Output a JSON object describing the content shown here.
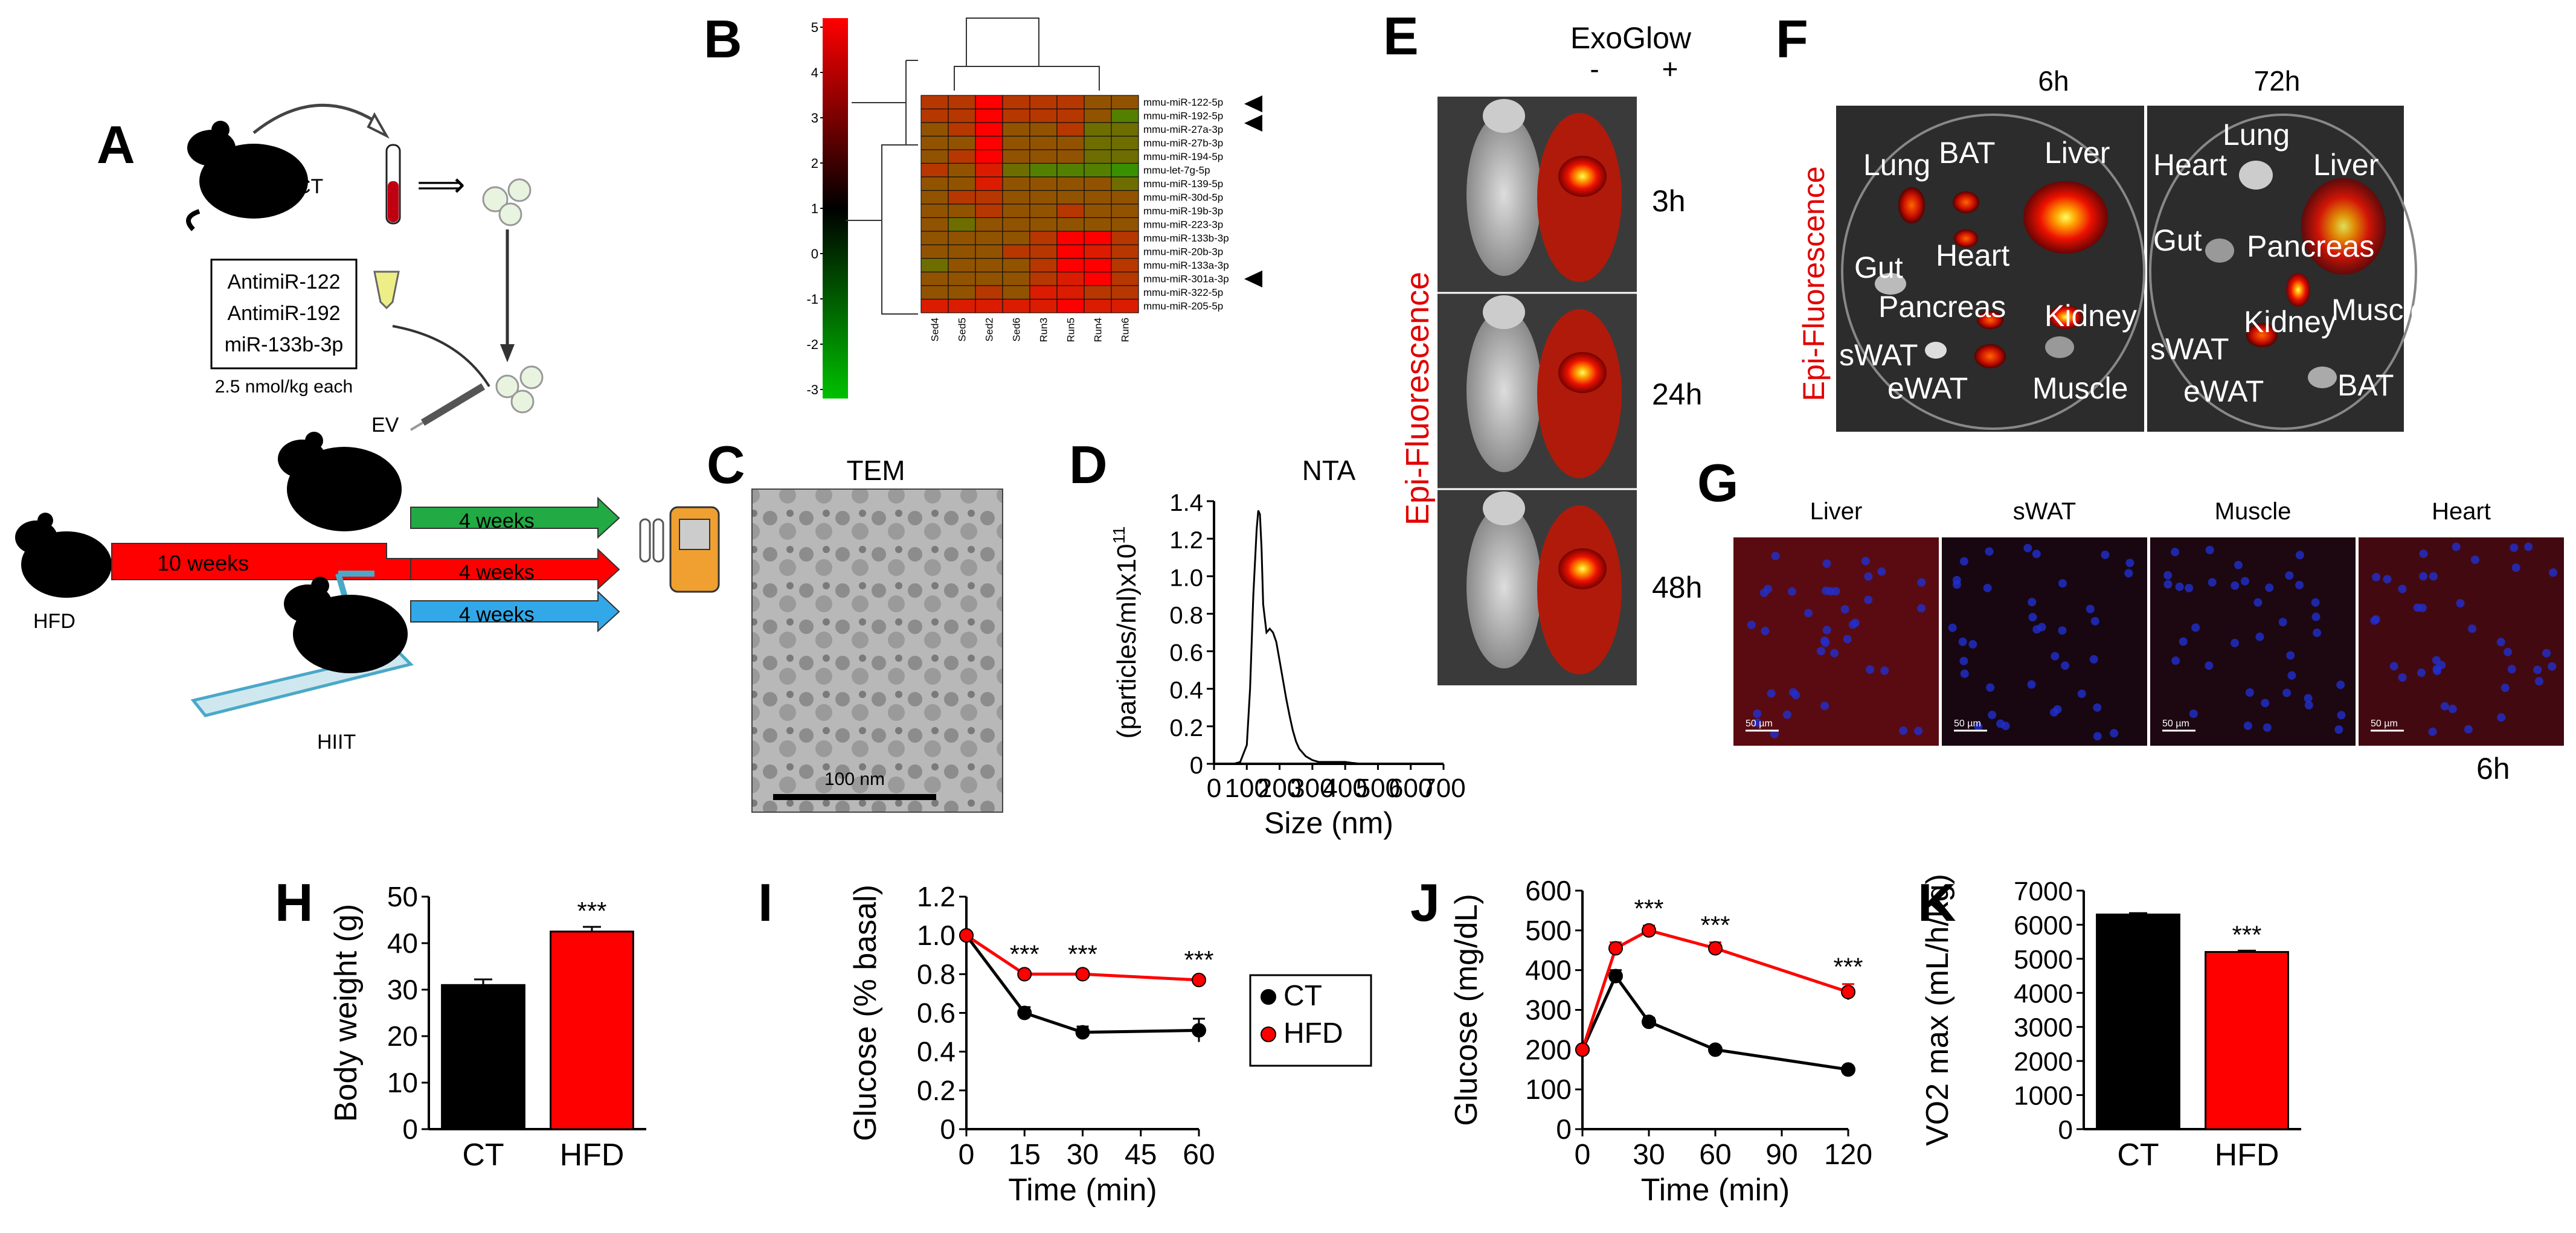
{
  "panels": {
    "A": {
      "letter": "A",
      "ct_label": "CT",
      "treatments": [
        "AntimiR-122",
        "AntimiR-192",
        "miR-133b-3p"
      ],
      "dose": "2.5 nmol/kg each",
      "ev_label": "EV",
      "hfd_label": "HFD",
      "hiit_label": "HIIT",
      "duration_main": "10 weeks",
      "duration_arms": [
        "4 weeks",
        "4 weeks",
        "4 weeks"
      ]
    },
    "B": {
      "letter": "B",
      "scale_ticks": [
        "5",
        "4",
        "3",
        "2",
        "1",
        "0",
        "-1",
        "-2",
        "-3"
      ],
      "rows": [
        "mmu-miR-122-5p",
        "mmu-miR-192-5p",
        "mmu-miR-27a-3p",
        "mmu-miR-27b-3p",
        "mmu-miR-194-5p",
        "mmu-let-7g-5p",
        "mmu-miR-139-5p",
        "mmu-miR-30d-5p",
        "mmu-miR-19b-3p",
        "mmu-miR-223-3p",
        "mmu-miR-133b-3p",
        "mmu-miR-20b-3p",
        "mmu-miR-133a-3p",
        "mmu-miR-301a-3p",
        "mmu-miR-322-5p",
        "mmu-miR-205-5p"
      ],
      "cols": [
        "Sed4",
        "Sed5",
        "Sed2",
        "Sed6",
        "Run3",
        "Run5",
        "Run4",
        "Run6"
      ],
      "matrix": [
        [
          1,
          1,
          2,
          1,
          1,
          1,
          0.5,
          0.5
        ],
        [
          1,
          1,
          2,
          1,
          1,
          1,
          0.5,
          -0.5
        ],
        [
          0.5,
          1,
          2,
          0.5,
          0.5,
          1,
          0,
          0
        ],
        [
          0.5,
          0.5,
          2,
          0.5,
          0.5,
          0.5,
          0,
          0
        ],
        [
          0.5,
          1,
          2,
          0.5,
          0.5,
          0.5,
          0,
          0
        ],
        [
          1,
          0.5,
          1.5,
          0,
          -0.5,
          -0.5,
          -0.5,
          -1
        ],
        [
          0.5,
          0.5,
          1.5,
          0.5,
          0.5,
          0.5,
          0.5,
          0
        ],
        [
          0.5,
          1,
          1,
          0.5,
          0.5,
          0.5,
          0.5,
          0.5
        ],
        [
          0.5,
          0.5,
          1,
          0.5,
          0.5,
          1,
          0.5,
          0.5
        ],
        [
          0.5,
          0,
          0.5,
          0.5,
          0.5,
          0.5,
          0.5,
          0.5
        ],
        [
          0.5,
          0.5,
          0.5,
          0.5,
          1,
          2,
          2,
          1
        ],
        [
          0.5,
          0.5,
          0.5,
          1,
          1,
          2,
          1.5,
          1
        ],
        [
          0,
          0.5,
          0.5,
          0.5,
          1,
          2,
          2,
          1
        ],
        [
          0.5,
          0.5,
          0.5,
          0.5,
          1,
          1.5,
          2,
          1
        ],
        [
          0.5,
          0.5,
          1,
          0.5,
          1.5,
          1.5,
          1,
          1
        ],
        [
          1.5,
          1.5,
          1.5,
          1.5,
          1.5,
          2,
          1.5,
          1.5
        ]
      ]
    },
    "C": {
      "letter": "C",
      "title": "TEM",
      "scalebar": "100 nm"
    },
    "D": {
      "letter": "D",
      "chart_data": {
        "type": "line",
        "title": "NTA",
        "xlabel": "Size (nm)",
        "ylabel": "(particles/ml)x10",
        "ylabel_sup": "11",
        "xlim": [
          0,
          700
        ],
        "ylim": [
          0,
          1.4
        ],
        "xticks": [
          "0",
          "100",
          "200",
          "300",
          "400",
          "500",
          "600",
          "700"
        ],
        "yticks": [
          "0",
          "0.2",
          "0.4",
          "0.6",
          "0.8",
          "1.0",
          "1.2",
          "1.4"
        ],
        "x": [
          0,
          20,
          40,
          60,
          80,
          100,
          110,
          120,
          130,
          135,
          140,
          145,
          150,
          160,
          170,
          180,
          190,
          200,
          210,
          220,
          230,
          240,
          250,
          260,
          270,
          280,
          300,
          320,
          340,
          360,
          380,
          400,
          420,
          450,
          500,
          600,
          700
        ],
        "y": [
          0,
          0,
          0,
          0,
          0.01,
          0.1,
          0.4,
          0.9,
          1.25,
          1.35,
          1.33,
          1.15,
          0.85,
          0.7,
          0.72,
          0.7,
          0.65,
          0.55,
          0.45,
          0.35,
          0.26,
          0.18,
          0.12,
          0.08,
          0.06,
          0.04,
          0.02,
          0.01,
          0.01,
          0.01,
          0.01,
          0.01,
          0.005,
          0,
          0,
          0,
          0
        ]
      }
    },
    "E": {
      "letter": "E",
      "title": "ExoGlow",
      "minus": "-",
      "plus": "+",
      "side_label": "Epi-Fluorescence",
      "times": [
        "3h",
        "24h",
        "48h"
      ]
    },
    "F": {
      "letter": "F",
      "side_label": "Epi-Fluorescence",
      "times": [
        "6h",
        "72h"
      ],
      "organs_6h": [
        "Lung",
        "BAT",
        "Liver",
        "Heart",
        "Gut",
        "Pancreas",
        "Kidney",
        "sWAT",
        "eWAT",
        "Muscle"
      ],
      "organs_72h": [
        "Heart",
        "Lung",
        "Liver",
        "Gut",
        "Pancreas",
        "Kidney",
        "Muscle",
        "sWAT",
        "eWAT",
        "BAT"
      ]
    },
    "G": {
      "letter": "G",
      "tissues": [
        "Liver",
        "sWAT",
        "Muscle",
        "Heart"
      ],
      "scalebar": "50 µm",
      "time": "6h"
    },
    "H": {
      "letter": "H",
      "chart_data": {
        "type": "bar",
        "categories": [
          "CT",
          "HFD"
        ],
        "values": [
          31,
          42.5
        ],
        "errors": [
          1.2,
          1.0
        ],
        "colors": [
          "#000000",
          "#ff0000"
        ],
        "ylabel": "Body weight (g)",
        "ylim": [
          0,
          50
        ],
        "yticks": [
          "0",
          "10",
          "20",
          "30",
          "40",
          "50"
        ],
        "significance": [
          "",
          "***"
        ]
      }
    },
    "I": {
      "letter": "I",
      "chart_data": {
        "type": "line",
        "xlabel": "Time (min)",
        "ylabel": "Glucose (% basal)",
        "xlim": [
          0,
          60
        ],
        "ylim": [
          0,
          1.2
        ],
        "xticks": [
          "0",
          "15",
          "30",
          "45",
          "60"
        ],
        "yticks": [
          "0",
          "0.2",
          "0.4",
          "0.6",
          "0.8",
          "1.0",
          "1.2"
        ],
        "x": [
          0,
          15,
          30,
          60
        ],
        "series": [
          {
            "name": "CT",
            "color": "#000000",
            "values": [
              1.0,
              0.6,
              0.5,
              0.51
            ],
            "errors": [
              0,
              0.03,
              0.03,
              0.06
            ]
          },
          {
            "name": "HFD",
            "color": "#ff0000",
            "values": [
              1.0,
              0.8,
              0.8,
              0.77
            ],
            "errors": [
              0,
              0.015,
              0.015,
              0.015
            ]
          }
        ],
        "significance": [
          "",
          "***",
          "***",
          "***"
        ],
        "legend": [
          "CT",
          "HFD"
        ]
      }
    },
    "J": {
      "letter": "J",
      "chart_data": {
        "type": "line",
        "xlabel": "Time (min)",
        "ylabel": "Glucose (mg/dL)",
        "xlim": [
          0,
          120
        ],
        "ylim": [
          0,
          600
        ],
        "xticks": [
          "0",
          "30",
          "60",
          "90",
          "120"
        ],
        "yticks": [
          "0",
          "100",
          "200",
          "300",
          "400",
          "500",
          "600"
        ],
        "x": [
          0,
          15,
          30,
          60,
          120
        ],
        "series": [
          {
            "name": "CT",
            "color": "#000000",
            "values": [
              200,
              385,
              270,
              200,
              150
            ],
            "errors": [
              8,
              15,
              10,
              8,
              6
            ]
          },
          {
            "name": "HFD",
            "color": "#ff0000",
            "values": [
              200,
              455,
              500,
              455,
              345
            ],
            "errors": [
              8,
              15,
              12,
              15,
              20
            ]
          }
        ],
        "significance": [
          "",
          "",
          "***",
          "***",
          "***"
        ]
      }
    },
    "K": {
      "letter": "K",
      "chart_data": {
        "type": "bar",
        "categories": [
          "CT",
          "HFD"
        ],
        "values": [
          6300,
          5200
        ],
        "errors": [
          40,
          40
        ],
        "colors": [
          "#000000",
          "#ff0000"
        ],
        "ylabel": "VO2 max (mL/h/kg)",
        "ylim": [
          0,
          7000
        ],
        "yticks": [
          "0",
          "1000",
          "2000",
          "3000",
          "4000",
          "5000",
          "6000",
          "7000"
        ],
        "significance": [
          "",
          "***"
        ]
      }
    }
  }
}
